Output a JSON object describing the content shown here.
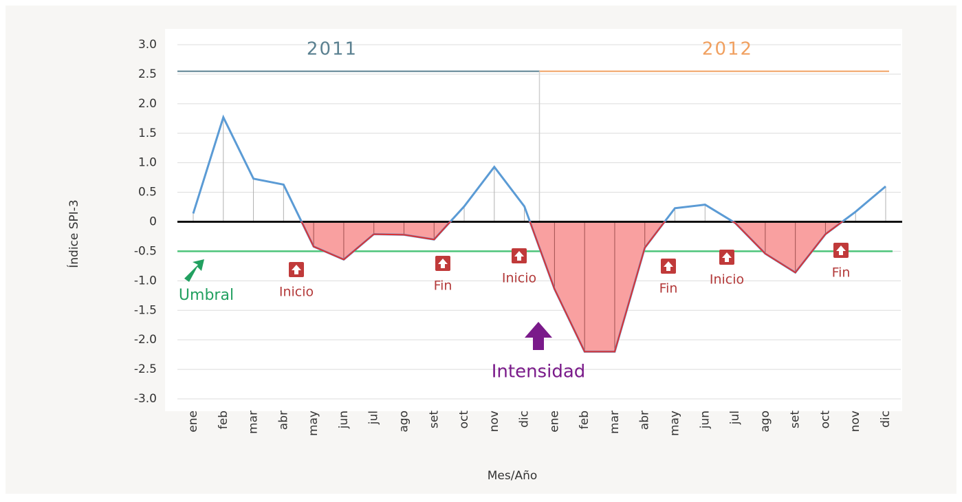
{
  "chart_data": {
    "type": "line",
    "y_axis_label": "Índice SPI-3",
    "x_axis_label": "Mes/Año",
    "categories": [
      "ene",
      "feb",
      "mar",
      "abr",
      "may",
      "jun",
      "jul",
      "ago",
      "set",
      "oct",
      "nov",
      "dic",
      "ene",
      "feb",
      "mar",
      "abr",
      "may",
      "jun",
      "jul",
      "ago",
      "set",
      "oct",
      "nov",
      "dic"
    ],
    "values": [
      0.14,
      1.77,
      0.73,
      0.63,
      -0.42,
      -0.64,
      -0.21,
      -0.22,
      -0.3,
      0.26,
      0.93,
      0.26,
      -1.14,
      -2.2,
      -2.2,
      -0.44,
      0.23,
      0.29,
      -0.02,
      -0.54,
      -0.86,
      -0.21,
      0.17,
      0.6
    ],
    "color": "#5b9bd5",
    "negative_color": "#e03030",
    "negative_fill": "#f9a0a0",
    "ylim": [
      -3,
      3
    ],
    "yticks": [
      {
        "value": 3,
        "label": "3.0"
      },
      2.5,
      {
        "value": 2,
        "label": "2.0"
      },
      1.5,
      {
        "value": 1,
        "label": "1.0"
      },
      0.5,
      0,
      -0.5,
      {
        "value": -1,
        "label": "-1.0"
      },
      -1.5,
      {
        "value": -2,
        "label": "-2.0"
      },
      -2.5,
      {
        "value": -3,
        "label": "-3.0"
      }
    ],
    "grid": true,
    "threshold": {
      "value": -0.5,
      "color": "#4cc47a"
    },
    "year_bands": [
      {
        "label": "2011",
        "level": 2.55,
        "color": "#5a8090"
      },
      {
        "label": "2012",
        "level": 2.55,
        "color": "#f0a060"
      }
    ],
    "annotations": [
      {
        "text": "Umbral",
        "color": "#22a060"
      },
      {
        "text": "Inicio",
        "color": "#b33a3a"
      },
      {
        "text": "Fin",
        "color": "#b33a3a"
      },
      {
        "text": "Inicio",
        "color": "#b33a3a"
      },
      {
        "text": "Intensidad",
        "color": "#7a1a8a"
      },
      {
        "text": "Fin",
        "color": "#b33a3a"
      },
      {
        "text": "Inicio",
        "color": "#b33a3a"
      },
      {
        "text": "Fin",
        "color": "#b33a3a"
      }
    ]
  }
}
